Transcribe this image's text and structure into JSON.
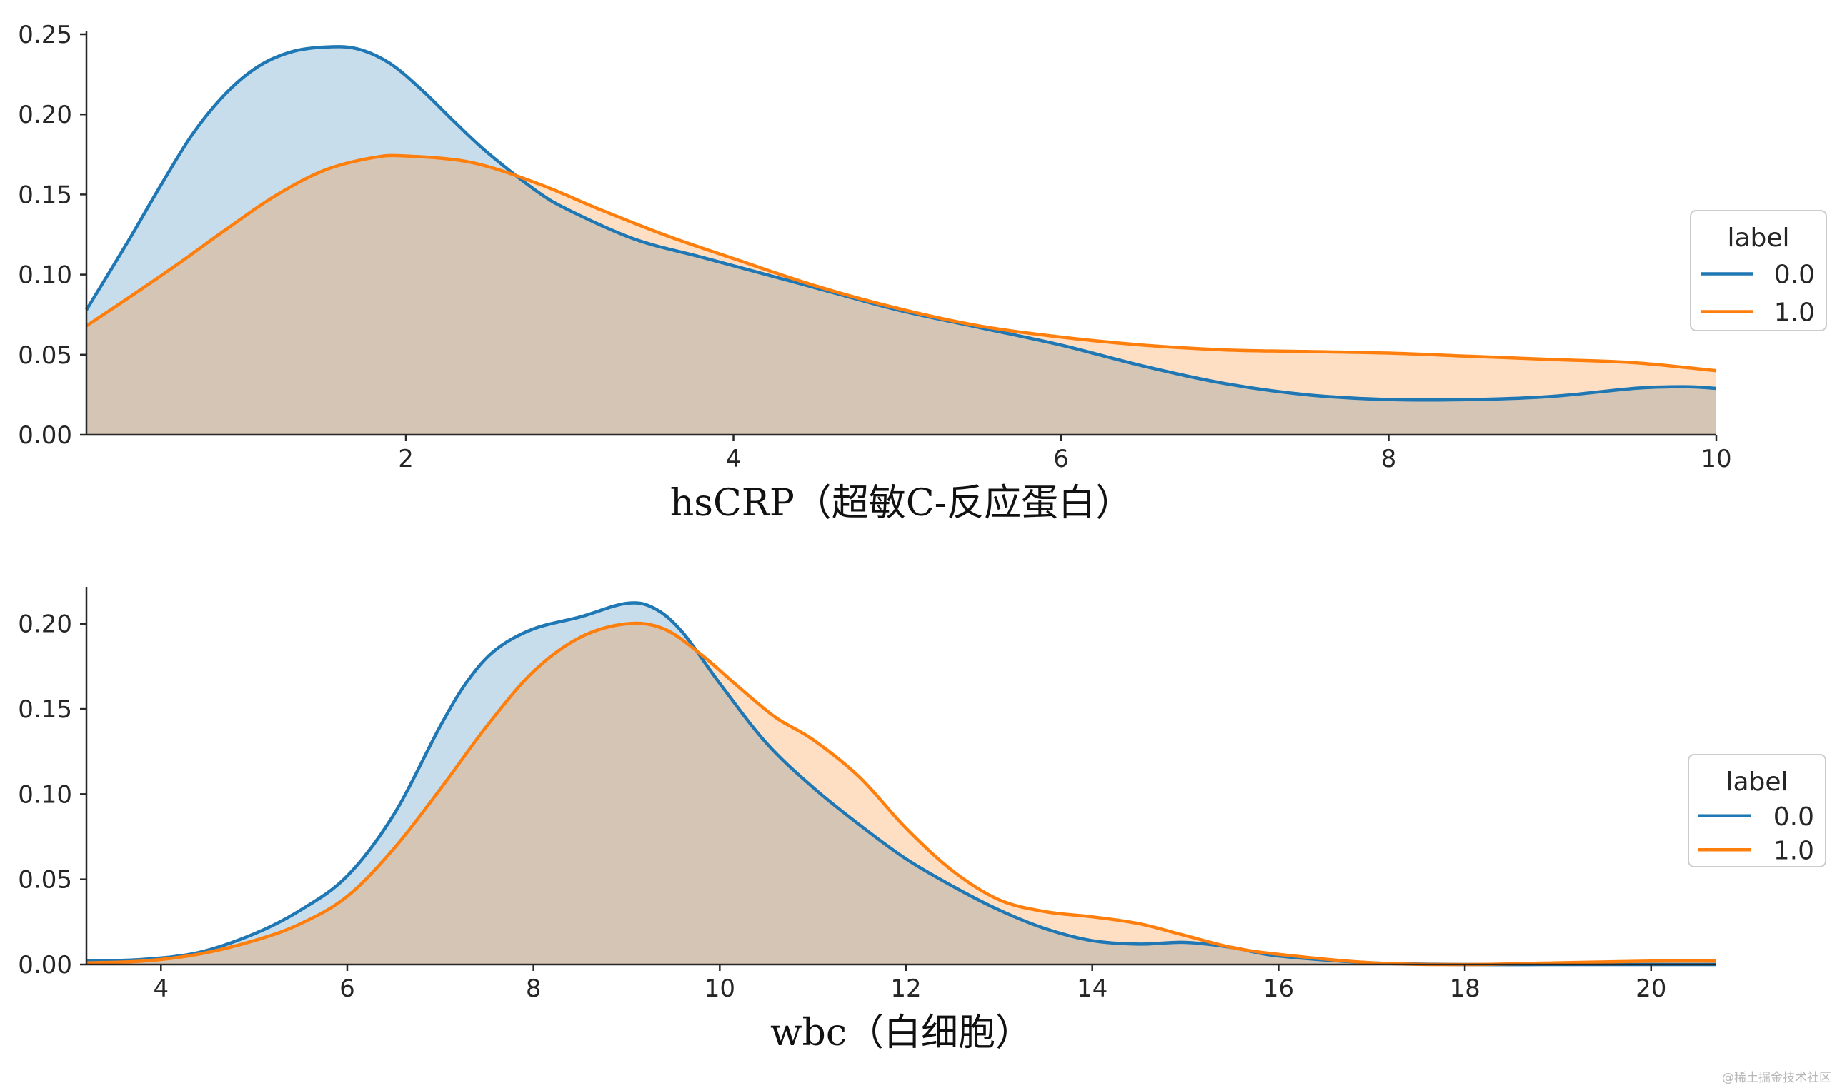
{
  "watermark": "@稀土掘金技术社区",
  "colors": {
    "series_0": "#1f77b4",
    "series_1": "#ff7f0e",
    "fill_0": "#1f77b4",
    "fill_1": "#ff7f0e",
    "axis": "#262626"
  },
  "chart_data": [
    {
      "type": "area",
      "xlabel": "hsCRP（超敏C-反应蛋白）",
      "ylabel": "",
      "xlim": [
        0.05,
        10
      ],
      "ylim": [
        0,
        0.25
      ],
      "xticks": [
        2,
        4,
        6,
        8,
        10
      ],
      "yticks": [
        "0.00",
        "0.05",
        "0.10",
        "0.15",
        "0.20",
        "0.25"
      ],
      "legend": {
        "title": "label",
        "placement": "right"
      },
      "grid": false,
      "series": [
        {
          "name": "0.0",
          "x": [
            0.05,
            0.3,
            0.5,
            0.7,
            0.9,
            1.1,
            1.3,
            1.5,
            1.7,
            1.9,
            2.1,
            2.3,
            2.5,
            2.8,
            3.0,
            3.4,
            3.8,
            4.2,
            4.6,
            5.0,
            5.5,
            6.0,
            6.5,
            7.0,
            7.5,
            8.0,
            8.5,
            9.0,
            9.5,
            9.8,
            10.0
          ],
          "values": [
            0.078,
            0.12,
            0.155,
            0.188,
            0.213,
            0.23,
            0.239,
            0.242,
            0.241,
            0.232,
            0.215,
            0.195,
            0.176,
            0.152,
            0.14,
            0.122,
            0.111,
            0.1,
            0.089,
            0.078,
            0.067,
            0.056,
            0.043,
            0.032,
            0.025,
            0.022,
            0.022,
            0.024,
            0.029,
            0.03,
            0.029
          ]
        },
        {
          "name": "1.0",
          "x": [
            0.05,
            0.3,
            0.6,
            0.9,
            1.2,
            1.5,
            1.8,
            2.0,
            2.4,
            2.8,
            3.2,
            3.6,
            4.0,
            4.5,
            5.0,
            5.5,
            6.0,
            6.5,
            7.0,
            7.5,
            8.0,
            8.5,
            9.0,
            9.5,
            10.0
          ],
          "values": [
            0.068,
            0.085,
            0.106,
            0.128,
            0.149,
            0.165,
            0.173,
            0.174,
            0.17,
            0.157,
            0.14,
            0.124,
            0.11,
            0.093,
            0.079,
            0.068,
            0.061,
            0.056,
            0.053,
            0.052,
            0.051,
            0.049,
            0.047,
            0.045,
            0.04
          ]
        }
      ]
    },
    {
      "type": "area",
      "xlabel": "wbc（白细胞）",
      "ylabel": "",
      "xlim": [
        3.2,
        20.7
      ],
      "ylim": [
        0,
        0.22
      ],
      "xticks": [
        4,
        6,
        8,
        10,
        12,
        14,
        16,
        18,
        20
      ],
      "yticks": [
        "0.00",
        "0.05",
        "0.10",
        "0.15",
        "0.20"
      ],
      "legend": {
        "title": "label",
        "placement": "right"
      },
      "grid": false,
      "series": [
        {
          "name": "0.0",
          "x": [
            3.2,
            3.8,
            4.4,
            5.0,
            5.5,
            6.0,
            6.5,
            7.0,
            7.3,
            7.6,
            8.0,
            8.5,
            9.0,
            9.3,
            9.6,
            10.0,
            10.5,
            11.0,
            11.5,
            12.0,
            12.5,
            13.0,
            13.5,
            14.0,
            14.5,
            15.0,
            15.5,
            16.0,
            17.0,
            18.0,
            19.0,
            20.0,
            20.7
          ],
          "values": [
            0.002,
            0.003,
            0.007,
            0.018,
            0.032,
            0.052,
            0.088,
            0.14,
            0.167,
            0.185,
            0.197,
            0.204,
            0.212,
            0.209,
            0.195,
            0.165,
            0.13,
            0.104,
            0.082,
            0.062,
            0.046,
            0.032,
            0.021,
            0.014,
            0.012,
            0.013,
            0.01,
            0.005,
            0.001,
            0.0,
            0.0,
            0.0,
            0.0
          ]
        },
        {
          "name": "1.0",
          "x": [
            3.2,
            3.8,
            4.4,
            5.0,
            5.5,
            6.0,
            6.5,
            7.0,
            7.5,
            8.0,
            8.5,
            9.0,
            9.4,
            9.8,
            10.2,
            10.6,
            11.0,
            11.5,
            12.0,
            12.5,
            13.0,
            13.5,
            14.0,
            14.5,
            15.0,
            15.5,
            16.0,
            17.0,
            18.0,
            19.0,
            20.0,
            20.7
          ],
          "values": [
            0.001,
            0.002,
            0.006,
            0.014,
            0.024,
            0.04,
            0.068,
            0.103,
            0.14,
            0.172,
            0.192,
            0.2,
            0.197,
            0.182,
            0.163,
            0.145,
            0.132,
            0.11,
            0.08,
            0.055,
            0.038,
            0.031,
            0.028,
            0.024,
            0.017,
            0.01,
            0.006,
            0.001,
            0.0,
            0.001,
            0.002,
            0.002
          ]
        }
      ]
    }
  ]
}
